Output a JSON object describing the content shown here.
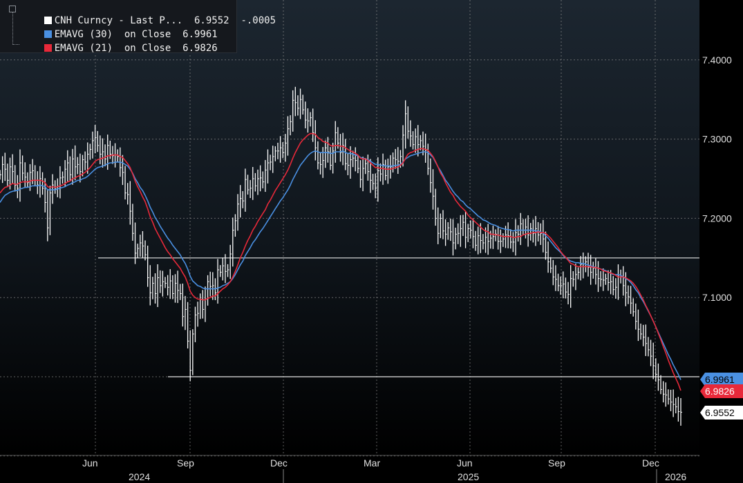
{
  "legend": {
    "row1": "CNH Curncy - Last P...  6.9552  -.0005",
    "row2": "EMAVG (30)  on Close  6.9961",
    "row3": "EMAVG (21)  on Close  6.9826"
  },
  "colors": {
    "price": "#ffffff",
    "ema30": "#4a90e2",
    "ema21": "#e8293a",
    "grid": "#8a8a8a"
  },
  "chart_data": {
    "type": "line",
    "y_ticks": [
      "7.1000",
      "7.2000",
      "7.3000",
      "7.4000"
    ],
    "month_labels": [
      "Jun",
      "Sep",
      "Dec",
      "Mar",
      "Jun",
      "Sep",
      "Dec"
    ],
    "year_labels": [
      "2024",
      "2025",
      "2026"
    ],
    "ylim": [
      6.92,
      7.45
    ],
    "series": [
      {
        "name": "CNH Curncy - Last Price",
        "values": [
          7.255,
          7.268,
          7.262,
          7.248,
          7.265,
          7.259,
          7.242,
          7.238,
          7.27,
          7.257,
          7.252,
          7.245,
          7.258,
          7.26,
          7.248,
          7.242,
          7.25,
          7.238,
          7.22,
          7.188,
          7.232,
          7.242,
          7.237,
          7.24,
          7.251,
          7.252,
          7.262,
          7.27,
          7.255,
          7.275,
          7.265,
          7.268,
          7.259,
          7.274,
          7.271,
          7.281,
          7.287,
          7.298,
          7.302,
          7.292,
          7.281,
          7.284,
          7.275,
          7.292,
          7.281,
          7.279,
          7.28,
          7.278,
          7.264,
          7.258,
          7.232,
          7.23,
          7.209,
          7.181,
          7.156,
          7.162,
          7.169,
          7.165,
          7.154,
          7.125,
          7.106,
          7.118,
          7.105,
          7.125,
          7.115,
          7.12,
          7.118,
          7.113,
          7.121,
          7.105,
          7.118,
          7.109,
          7.105,
          7.076,
          7.085,
          7.045,
          7.008,
          7.054,
          7.078,
          7.08,
          7.098,
          7.085,
          7.098,
          7.12,
          7.114,
          7.115,
          7.106,
          7.135,
          7.132,
          7.14,
          7.133,
          7.135,
          7.155,
          7.185,
          7.197,
          7.218,
          7.225,
          7.222,
          7.249,
          7.236,
          7.238,
          7.25,
          7.241,
          7.25,
          7.251,
          7.246,
          7.261,
          7.27,
          7.271,
          7.278,
          7.285,
          7.285,
          7.289,
          7.283,
          7.295,
          7.313,
          7.322,
          7.349,
          7.346,
          7.339,
          7.35,
          7.337,
          7.324,
          7.323,
          7.327,
          7.308,
          7.289,
          7.27,
          7.268,
          7.273,
          7.289,
          7.284,
          7.267,
          7.285,
          7.308,
          7.295,
          7.283,
          7.292,
          7.269,
          7.267,
          7.274,
          7.276,
          7.273,
          7.263,
          7.249,
          7.263,
          7.269,
          7.259,
          7.248,
          7.244,
          7.238,
          7.26,
          7.256,
          7.268,
          7.254,
          7.265,
          7.265,
          7.276,
          7.274,
          7.272,
          7.278,
          7.305,
          7.332,
          7.31,
          7.304,
          7.293,
          7.303,
          7.293,
          7.298,
          7.291,
          7.286,
          7.263,
          7.245,
          7.228,
          7.2,
          7.181,
          7.2,
          7.184,
          7.18,
          7.188,
          7.183,
          7.169,
          7.18,
          7.181,
          7.187,
          7.195,
          7.176,
          7.187,
          7.185,
          7.177,
          7.166,
          7.178,
          7.172,
          7.169,
          7.176,
          7.171,
          7.175,
          7.177,
          7.18,
          7.171,
          7.171,
          7.174,
          7.179,
          7.178,
          7.17,
          7.17,
          7.182,
          7.18,
          7.193,
          7.185,
          7.189,
          7.179,
          7.187,
          7.181,
          7.187,
          7.179,
          7.181,
          7.174,
          7.157,
          7.145,
          7.137,
          7.126,
          7.123,
          7.115,
          7.115,
          7.117,
          7.107,
          7.104,
          7.124,
          7.123,
          7.129,
          7.132,
          7.142,
          7.139,
          7.145,
          7.138,
          7.132,
          7.137,
          7.129,
          7.124,
          7.123,
          7.122,
          7.124,
          7.119,
          7.12,
          7.11,
          7.113,
          7.126,
          7.127,
          7.115,
          7.106,
          7.101,
          7.093,
          7.082,
          7.07,
          7.06,
          7.054,
          7.05,
          7.042,
          7.034,
          7.026,
          7.014,
          7.003,
          6.996,
          6.984,
          6.978,
          6.977,
          6.972,
          6.968,
          6.965,
          6.962,
          6.956,
          6.9552
        ]
      },
      {
        "name": "EMAVG (30) on Close",
        "values": [
          7.22,
          7.225,
          7.229,
          7.231,
          7.233,
          7.234,
          7.235,
          7.235,
          7.237,
          7.238,
          7.239,
          7.239,
          7.24,
          7.241,
          7.241,
          7.241,
          7.242,
          7.241,
          7.24,
          7.236,
          7.236,
          7.236,
          7.236,
          7.237,
          7.238,
          7.239,
          7.24,
          7.242,
          7.243,
          7.245,
          7.246,
          7.248,
          7.248,
          7.25,
          7.251,
          7.253,
          7.256,
          7.259,
          7.262,
          7.264,
          7.265,
          7.266,
          7.267,
          7.269,
          7.27,
          7.27,
          7.271,
          7.271,
          7.271,
          7.27,
          7.268,
          7.266,
          7.262,
          7.257,
          7.25,
          7.245,
          7.239,
          7.235,
          7.229,
          7.222,
          7.214,
          7.208,
          7.201,
          7.196,
          7.19,
          7.185,
          7.18,
          7.175,
          7.171,
          7.166,
          7.162,
          7.158,
          7.154,
          7.148,
          7.143,
          7.136,
          7.127,
          7.121,
          7.118,
          7.115,
          7.114,
          7.112,
          7.111,
          7.111,
          7.111,
          7.111,
          7.111,
          7.112,
          7.113,
          7.115,
          7.116,
          7.118,
          7.12,
          7.124,
          7.129,
          7.135,
          7.141,
          7.146,
          7.153,
          7.158,
          7.163,
          7.169,
          7.173,
          7.178,
          7.183,
          7.187,
          7.192,
          7.197,
          7.202,
          7.207,
          7.212,
          7.217,
          7.222,
          7.226,
          7.231,
          7.236,
          7.242,
          7.249,
          7.255,
          7.261,
          7.267,
          7.271,
          7.275,
          7.279,
          7.282,
          7.284,
          7.285,
          7.284,
          7.283,
          7.283,
          7.283,
          7.283,
          7.282,
          7.282,
          7.284,
          7.284,
          7.284,
          7.285,
          7.283,
          7.282,
          7.282,
          7.281,
          7.28,
          7.279,
          7.277,
          7.276,
          7.275,
          7.274,
          7.272,
          7.27,
          7.268,
          7.268,
          7.267,
          7.267,
          7.266,
          7.266,
          7.266,
          7.266,
          7.267,
          7.267,
          7.268,
          7.271,
          7.275,
          7.277,
          7.279,
          7.28,
          7.281,
          7.282,
          7.283,
          7.284,
          7.284,
          7.283,
          7.28,
          7.277,
          7.271,
          7.265,
          7.26,
          7.254,
          7.248,
          7.244,
          7.239,
          7.234,
          7.23,
          7.227,
          7.223,
          7.221,
          7.217,
          7.214,
          7.212,
          7.209,
          7.206,
          7.203,
          7.201,
          7.198,
          7.197,
          7.195,
          7.193,
          7.192,
          7.191,
          7.189,
          7.188,
          7.187,
          7.186,
          7.186,
          7.185,
          7.184,
          7.185,
          7.185,
          7.185,
          7.185,
          7.185,
          7.185,
          7.185,
          7.185,
          7.184,
          7.184,
          7.183,
          7.181,
          7.178,
          7.175,
          7.171,
          7.167,
          7.163,
          7.16,
          7.157,
          7.153,
          7.15,
          7.148,
          7.146,
          7.145,
          7.144,
          7.144,
          7.143,
          7.143,
          7.142,
          7.141,
          7.14,
          7.139,
          7.138,
          7.137,
          7.136,
          7.135,
          7.134,
          7.132,
          7.131,
          7.129,
          7.129,
          7.129,
          7.128,
          7.126,
          7.124,
          7.122,
          7.119,
          7.115,
          7.11,
          7.106,
          7.1,
          7.095,
          7.089,
          7.083,
          7.077,
          7.07,
          7.063,
          7.056,
          7.049,
          7.042,
          7.035,
          7.028,
          7.022,
          7.015,
          7.009,
          7.003,
          6.9961
        ]
      },
      {
        "name": "EMAVG (21) on Close",
        "values": [
          7.232,
          7.236,
          7.239,
          7.24,
          7.242,
          7.244,
          7.243,
          7.243,
          7.245,
          7.246,
          7.246,
          7.246,
          7.247,
          7.248,
          7.248,
          7.248,
          7.248,
          7.247,
          7.245,
          7.24,
          7.239,
          7.24,
          7.239,
          7.24,
          7.241,
          7.242,
          7.244,
          7.246,
          7.247,
          7.25,
          7.251,
          7.253,
          7.254,
          7.256,
          7.258,
          7.261,
          7.264,
          7.268,
          7.272,
          7.274,
          7.275,
          7.276,
          7.277,
          7.279,
          7.279,
          7.28,
          7.28,
          7.28,
          7.278,
          7.277,
          7.273,
          7.269,
          7.264,
          7.256,
          7.247,
          7.24,
          7.234,
          7.227,
          7.221,
          7.212,
          7.202,
          7.195,
          7.187,
          7.181,
          7.175,
          7.169,
          7.163,
          7.158,
          7.154,
          7.149,
          7.145,
          7.141,
          7.137,
          7.131,
          7.126,
          7.118,
          7.108,
          7.103,
          7.1,
          7.098,
          7.098,
          7.097,
          7.097,
          7.099,
          7.1,
          7.102,
          7.102,
          7.105,
          7.108,
          7.111,
          7.113,
          7.116,
          7.12,
          7.126,
          7.133,
          7.141,
          7.15,
          7.157,
          7.165,
          7.172,
          7.178,
          7.185,
          7.19,
          7.196,
          7.201,
          7.206,
          7.211,
          7.218,
          7.223,
          7.229,
          7.235,
          7.24,
          7.245,
          7.25,
          7.255,
          7.261,
          7.268,
          7.276,
          7.283,
          7.289,
          7.295,
          7.299,
          7.302,
          7.305,
          7.307,
          7.307,
          7.306,
          7.302,
          7.3,
          7.297,
          7.296,
          7.295,
          7.292,
          7.291,
          7.292,
          7.292,
          7.291,
          7.291,
          7.289,
          7.287,
          7.285,
          7.284,
          7.282,
          7.28,
          7.276,
          7.275,
          7.275,
          7.273,
          7.27,
          7.267,
          7.264,
          7.264,
          7.263,
          7.263,
          7.262,
          7.262,
          7.262,
          7.263,
          7.264,
          7.265,
          7.267,
          7.27,
          7.276,
          7.281,
          7.283,
          7.284,
          7.286,
          7.287,
          7.288,
          7.288,
          7.287,
          7.286,
          7.282,
          7.278,
          7.272,
          7.265,
          7.257,
          7.252,
          7.245,
          7.239,
          7.233,
          7.229,
          7.223,
          7.219,
          7.215,
          7.212,
          7.209,
          7.204,
          7.201,
          7.198,
          7.195,
          7.192,
          7.189,
          7.186,
          7.184,
          7.183,
          7.18,
          7.18,
          7.179,
          7.179,
          7.178,
          7.177,
          7.177,
          7.177,
          7.177,
          7.176,
          7.176,
          7.177,
          7.177,
          7.179,
          7.18,
          7.181,
          7.181,
          7.182,
          7.182,
          7.183,
          7.182,
          7.182,
          7.181,
          7.178,
          7.175,
          7.171,
          7.167,
          7.163,
          7.158,
          7.154,
          7.151,
          7.147,
          7.143,
          7.142,
          7.14,
          7.139,
          7.139,
          7.139,
          7.139,
          7.139,
          7.139,
          7.138,
          7.138,
          7.137,
          7.136,
          7.134,
          7.133,
          7.132,
          7.131,
          7.13,
          7.128,
          7.126,
          7.126,
          7.126,
          7.125,
          7.123,
          7.121,
          7.118,
          7.114,
          7.109,
          7.103,
          7.097,
          7.09,
          7.084,
          7.077,
          7.07,
          7.063,
          7.055,
          7.047,
          7.038,
          7.03,
          7.021,
          7.013,
          7.005,
          6.998,
          6.991,
          6.9826
        ]
      }
    ],
    "horizontal_lines": [
      7.15,
      7.0
    ],
    "last_value_tags": [
      "6.9961",
      "6.9826",
      "6.9552"
    ]
  }
}
